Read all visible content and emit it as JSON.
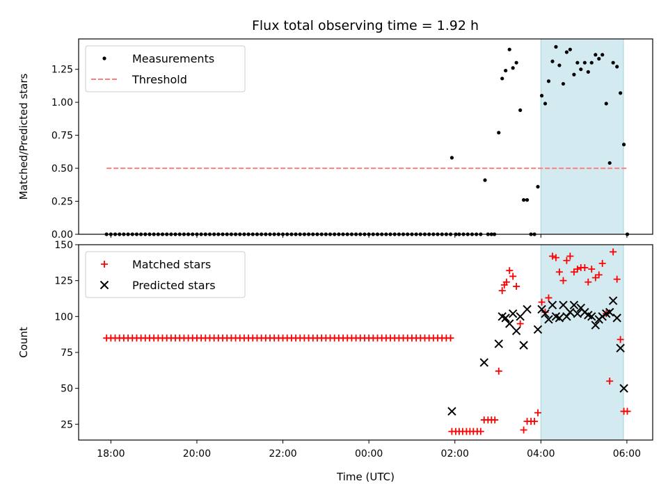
{
  "chart_data": [
    {
      "type": "scatter",
      "title": "Flux total observing time = 1.92 h",
      "xlabel": "",
      "ylabel": "Matched/Predicted stars",
      "ylim": [
        0,
        1.48
      ],
      "yticks": [
        "0.00",
        "0.25",
        "0.50",
        "0.75",
        "1.00",
        "1.25"
      ],
      "yticks_values": [
        0,
        0.25,
        0.5,
        0.75,
        1.0,
        1.25
      ],
      "legend": {
        "position": "top-left",
        "entries": [
          "Measurements",
          "Threshold"
        ]
      },
      "threshold": {
        "name": "Threshold",
        "value": 0.5,
        "x_start": -6.1,
        "x_end": 6.0,
        "color": "#ff7f7f"
      },
      "series": [
        {
          "name": "Measurements",
          "color": "#000000",
          "x_range": "-6.1 to 1.9 every 0.1 h",
          "points": [
            [
              1.93,
              0.58
            ],
            [
              2.02,
              0.0
            ],
            [
              2.1,
              0.0
            ],
            [
              2.2,
              0.0
            ],
            [
              2.3,
              0.0
            ],
            [
              2.4,
              0.0
            ],
            [
              2.5,
              0.0
            ],
            [
              2.6,
              0.0
            ],
            [
              2.7,
              0.41
            ],
            [
              2.77,
              0.0
            ],
            [
              2.85,
              0.0
            ],
            [
              2.92,
              0.0
            ],
            [
              3.02,
              0.77
            ],
            [
              3.1,
              1.18
            ],
            [
              3.18,
              1.24
            ],
            [
              3.27,
              1.4
            ],
            [
              3.35,
              1.26
            ],
            [
              3.43,
              1.3
            ],
            [
              3.52,
              0.94
            ],
            [
              3.6,
              0.26
            ],
            [
              3.68,
              0.26
            ],
            [
              3.77,
              0.0
            ],
            [
              3.85,
              0.0
            ],
            [
              3.93,
              0.36
            ],
            [
              4.02,
              1.05
            ],
            [
              4.1,
              0.99
            ],
            [
              4.18,
              1.16
            ],
            [
              4.27,
              1.31
            ],
            [
              4.35,
              1.42
            ],
            [
              4.43,
              1.28
            ],
            [
              4.52,
              1.14
            ],
            [
              4.6,
              1.38
            ],
            [
              4.68,
              1.4
            ],
            [
              4.77,
              1.21
            ],
            [
              4.85,
              1.3
            ],
            [
              4.93,
              1.25
            ],
            [
              5.02,
              1.3
            ],
            [
              5.1,
              1.23
            ],
            [
              5.18,
              1.3
            ],
            [
              5.27,
              1.36
            ],
            [
              5.35,
              1.33
            ],
            [
              5.43,
              1.36
            ],
            [
              5.52,
              0.99
            ],
            [
              5.6,
              0.54
            ],
            [
              5.68,
              1.3
            ],
            [
              5.77,
              1.27
            ],
            [
              5.85,
              1.07
            ],
            [
              5.93,
              0.68
            ],
            [
              6.01,
              0.0
            ]
          ]
        }
      ],
      "highlight_span": {
        "x_start": 4.0,
        "x_end": 5.92,
        "color": "#d3eaf0"
      }
    },
    {
      "type": "scatter",
      "title": "",
      "xlabel": "Time (UTC)",
      "ylabel": "Count",
      "xlim": [
        -6.75,
        6.6
      ],
      "xticks": [
        "18:00",
        "20:00",
        "22:00",
        "00:00",
        "02:00",
        "04:00",
        "06:00"
      ],
      "xticks_values": [
        -6,
        -4,
        -2,
        0,
        2,
        4,
        6
      ],
      "ylim": [
        14,
        150
      ],
      "yticks": [
        "25",
        "50",
        "75",
        "100",
        "125",
        "150"
      ],
      "yticks_values": [
        25,
        50,
        75,
        100,
        125,
        150
      ],
      "legend": {
        "position": "top-left",
        "entries": [
          "Matched stars",
          "Predicted stars"
        ]
      },
      "series": [
        {
          "name": "Matched stars",
          "color": "#ff0000",
          "marker": "plus",
          "x_range": "-6.1 to 1.9 every 0.1 h, constant 85",
          "points": [
            [
              1.93,
              20
            ],
            [
              2.02,
              20
            ],
            [
              2.1,
              20
            ],
            [
              2.18,
              20
            ],
            [
              2.27,
              20
            ],
            [
              2.35,
              20
            ],
            [
              2.43,
              20
            ],
            [
              2.52,
              20
            ],
            [
              2.6,
              20
            ],
            [
              2.68,
              28
            ],
            [
              2.77,
              28
            ],
            [
              2.85,
              28
            ],
            [
              2.93,
              28
            ],
            [
              3.02,
              62
            ],
            [
              3.1,
              118
            ],
            [
              3.15,
              122
            ],
            [
              3.2,
              124
            ],
            [
              3.27,
              132
            ],
            [
              3.35,
              128
            ],
            [
              3.43,
              121
            ],
            [
              3.52,
              95
            ],
            [
              3.6,
              21
            ],
            [
              3.68,
              27
            ],
            [
              3.77,
              27
            ],
            [
              3.85,
              27
            ],
            [
              3.93,
              33
            ],
            [
              4.02,
              110
            ],
            [
              4.1,
              103
            ],
            [
              4.18,
              113
            ],
            [
              4.27,
              142
            ],
            [
              4.35,
              141
            ],
            [
              4.43,
              131
            ],
            [
              4.52,
              125
            ],
            [
              4.6,
              139
            ],
            [
              4.68,
              142
            ],
            [
              4.77,
              131
            ],
            [
              4.85,
              133
            ],
            [
              4.93,
              134
            ],
            [
              5.02,
              134
            ],
            [
              5.1,
              124
            ],
            [
              5.18,
              133
            ],
            [
              5.27,
              127
            ],
            [
              5.35,
              129
            ],
            [
              5.43,
              137
            ],
            [
              5.52,
              102
            ],
            [
              5.6,
              55
            ],
            [
              5.68,
              145
            ],
            [
              5.77,
              126
            ],
            [
              5.85,
              84
            ],
            [
              5.93,
              34
            ],
            [
              6.01,
              34
            ]
          ]
        },
        {
          "name": "Predicted stars",
          "color": "#000000",
          "marker": "x",
          "points": [
            [
              1.93,
              34
            ],
            [
              2.68,
              68
            ],
            [
              3.02,
              81
            ],
            [
              3.1,
              100
            ],
            [
              3.18,
              99
            ],
            [
              3.27,
              95
            ],
            [
              3.35,
              102
            ],
            [
              3.43,
              90
            ],
            [
              3.52,
              100
            ],
            [
              3.6,
              80
            ],
            [
              3.68,
              105
            ],
            [
              3.93,
              91
            ],
            [
              4.02,
              105
            ],
            [
              4.1,
              102
            ],
            [
              4.18,
              98
            ],
            [
              4.27,
              108
            ],
            [
              4.35,
              100
            ],
            [
              4.43,
              99
            ],
            [
              4.52,
              108
            ],
            [
              4.6,
              100
            ],
            [
              4.68,
              103
            ],
            [
              4.77,
              108
            ],
            [
              4.85,
              102
            ],
            [
              4.93,
              106
            ],
            [
              5.02,
              103
            ],
            [
              5.1,
              101
            ],
            [
              5.18,
              100
            ],
            [
              5.27,
              94
            ],
            [
              5.35,
              98
            ],
            [
              5.43,
              100
            ],
            [
              5.52,
              102
            ],
            [
              5.6,
              103
            ],
            [
              5.68,
              111
            ],
            [
              5.77,
              99
            ],
            [
              5.85,
              78
            ],
            [
              5.93,
              50
            ]
          ]
        }
      ],
      "highlight_span": {
        "x_start": 4.0,
        "x_end": 5.92,
        "color": "#d3eaf0"
      }
    }
  ]
}
